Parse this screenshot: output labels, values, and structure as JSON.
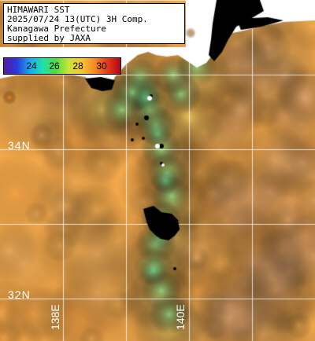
{
  "header": {
    "line1": "HIMAWARI SST",
    "line2": "2025/07/24 13(UTC) 3H Comp.",
    "line3": "Kanagawa Prefecture",
    "line4": "supplied by JAXA"
  },
  "colorbar": {
    "labels": [
      "24",
      "26",
      "28",
      "30"
    ],
    "stops": [
      "#5a1aa0",
      "#2a3adc",
      "#19a9f0",
      "#1fe0b0",
      "#4fdc46",
      "#c9e43a",
      "#f4c634",
      "#f48a24",
      "#e33a18",
      "#b0061a"
    ]
  },
  "grid": {
    "lat_labels": [
      "34N",
      "32N"
    ],
    "lon_labels": [
      "138E",
      "140E"
    ]
  },
  "colors": {
    "land": "#ffffff",
    "cloud_mask": "#000000",
    "grid_line": "#ffffff"
  }
}
